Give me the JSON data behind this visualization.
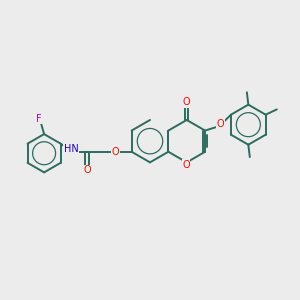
{
  "bg_color": "#ececec",
  "bond_color": "#2d6b5e",
  "bond_width": 1.4,
  "O_color": "#ee1100",
  "N_color": "#2200bb",
  "F_color": "#aa00cc",
  "text_fontsize": 7.0,
  "figsize": [
    3.0,
    3.0
  ],
  "dpi": 100,
  "xlim": [
    0,
    10
  ],
  "ylim": [
    0,
    10
  ]
}
